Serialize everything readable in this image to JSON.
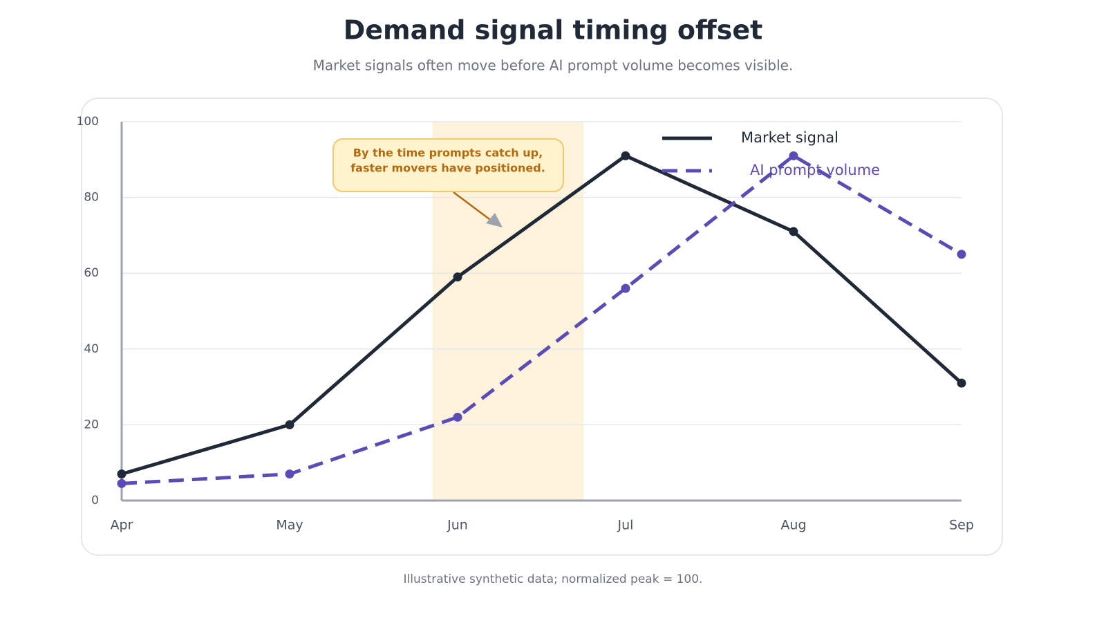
{
  "chart_data": {
    "type": "line",
    "title": "Demand signal timing offset",
    "subtitle": "Market signals often move before AI prompt volume becomes visible.",
    "footnote": "Illustrative synthetic data; normalized peak = 100.",
    "annotation": [
      "By the time prompts catch up,",
      "faster movers have positioned."
    ],
    "categories": [
      "Apr",
      "May",
      "Jun",
      "Jul",
      "Aug",
      "Sep"
    ],
    "series": [
      {
        "name": "Market signal",
        "color": "#1f2937",
        "dashed": false,
        "values": [
          7,
          20,
          59,
          91,
          71,
          31
        ]
      },
      {
        "name": "AI prompt volume",
        "color": "#5b4bb7",
        "dashed": true,
        "values": [
          4.5,
          7,
          22,
          56,
          91,
          65
        ]
      }
    ],
    "ylim": [
      0,
      100
    ],
    "yticks": [
      0,
      20,
      40,
      60,
      80,
      100
    ],
    "grid": true,
    "legend": "top-right"
  }
}
